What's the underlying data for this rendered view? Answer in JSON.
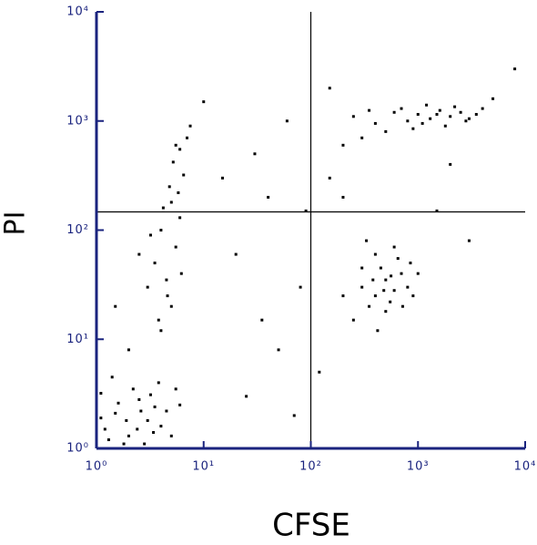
{
  "chart_data": {
    "type": "scatter",
    "x_label": "CFSE",
    "y_label": "PI",
    "xscale": "log",
    "yscale": "log",
    "xlim": [
      1,
      10000
    ],
    "ylim": [
      1,
      10000
    ],
    "xticks": [
      {
        "value": 1,
        "label": "10⁰"
      },
      {
        "value": 10,
        "label": "10¹"
      },
      {
        "value": 100,
        "label": "10²"
      },
      {
        "value": 1000,
        "label": "10³"
      },
      {
        "value": 10000,
        "label": "10⁴"
      }
    ],
    "yticks": [
      {
        "value": 1,
        "label": "10⁰"
      },
      {
        "value": 10,
        "label": "10¹"
      },
      {
        "value": 100,
        "label": "10²"
      },
      {
        "value": 1000,
        "label": "10³"
      },
      {
        "value": 10000,
        "label": "10⁴"
      }
    ],
    "quadrant": {
      "x": 100,
      "y": 147
    },
    "color": "#000000",
    "axis_color": "#1a237e",
    "x": [
      1.2,
      1.5,
      2,
      2.5,
      3,
      1.1,
      1.8,
      3.5,
      4,
      2.2,
      1.3,
      2.8,
      1.6,
      3.2,
      4.5,
      5,
      1.9,
      2.4,
      1.4,
      3.8,
      6,
      1.1,
      2.6,
      3.4,
      5.5,
      4,
      5,
      4.5,
      3.5,
      5.5,
      4,
      6,
      5,
      4.8,
      6.5,
      5.2,
      6,
      7,
      3,
      2.5,
      3.2,
      4.2,
      5.8,
      6.2,
      4.6,
      3.8,
      2,
      1.5,
      7.5,
      5.5,
      250,
      400,
      600,
      800,
      1000,
      1300,
      1600,
      2000,
      2500,
      3000,
      3500,
      500,
      700,
      900,
      1200,
      300,
      1800,
      2200,
      4000,
      350,
      1100,
      1500,
      2800,
      200,
      5000,
      300,
      400,
      500,
      600,
      450,
      350,
      700,
      550,
      400,
      800,
      250,
      650,
      500,
      900,
      300,
      380,
      720,
      480,
      600,
      1000,
      200,
      420,
      560,
      850,
      330,
      15,
      30,
      60,
      40,
      20,
      80,
      50,
      25,
      120,
      150,
      10,
      90,
      35,
      70,
      200,
      2000,
      1500,
      3000,
      8000,
      150
    ],
    "y": [
      1.5,
      2.1,
      1.3,
      2.8,
      1.8,
      3.2,
      1.1,
      2.4,
      1.6,
      3.5,
      1.2,
      1.1,
      2.6,
      3.1,
      2.2,
      1.3,
      1.8,
      1.5,
      4.5,
      4,
      2.5,
      1.9,
      2.2,
      1.4,
      3.5,
      12,
      20,
      35,
      50,
      70,
      100,
      130,
      180,
      250,
      320,
      420,
      550,
      700,
      30,
      60,
      90,
      160,
      220,
      40,
      25,
      15,
      8,
      20,
      900,
      600,
      1100,
      950,
      1200,
      1000,
      1150,
      1050,
      1250,
      1100,
      1200,
      1050,
      1150,
      800,
      1300,
      850,
      1400,
      700,
      900,
      1350,
      1300,
      1250,
      950,
      1150,
      1000,
      600,
      1600,
      30,
      25,
      35,
      28,
      45,
      20,
      40,
      22,
      60,
      30,
      15,
      55,
      18,
      25,
      45,
      35,
      20,
      28,
      70,
      40,
      25,
      12,
      38,
      50,
      80,
      300,
      500,
      1000,
      200,
      60,
      30,
      8,
      3,
      5,
      300,
      1500,
      150,
      15,
      2,
      200,
      400,
      150,
      80,
      3000,
      2000
    ]
  }
}
